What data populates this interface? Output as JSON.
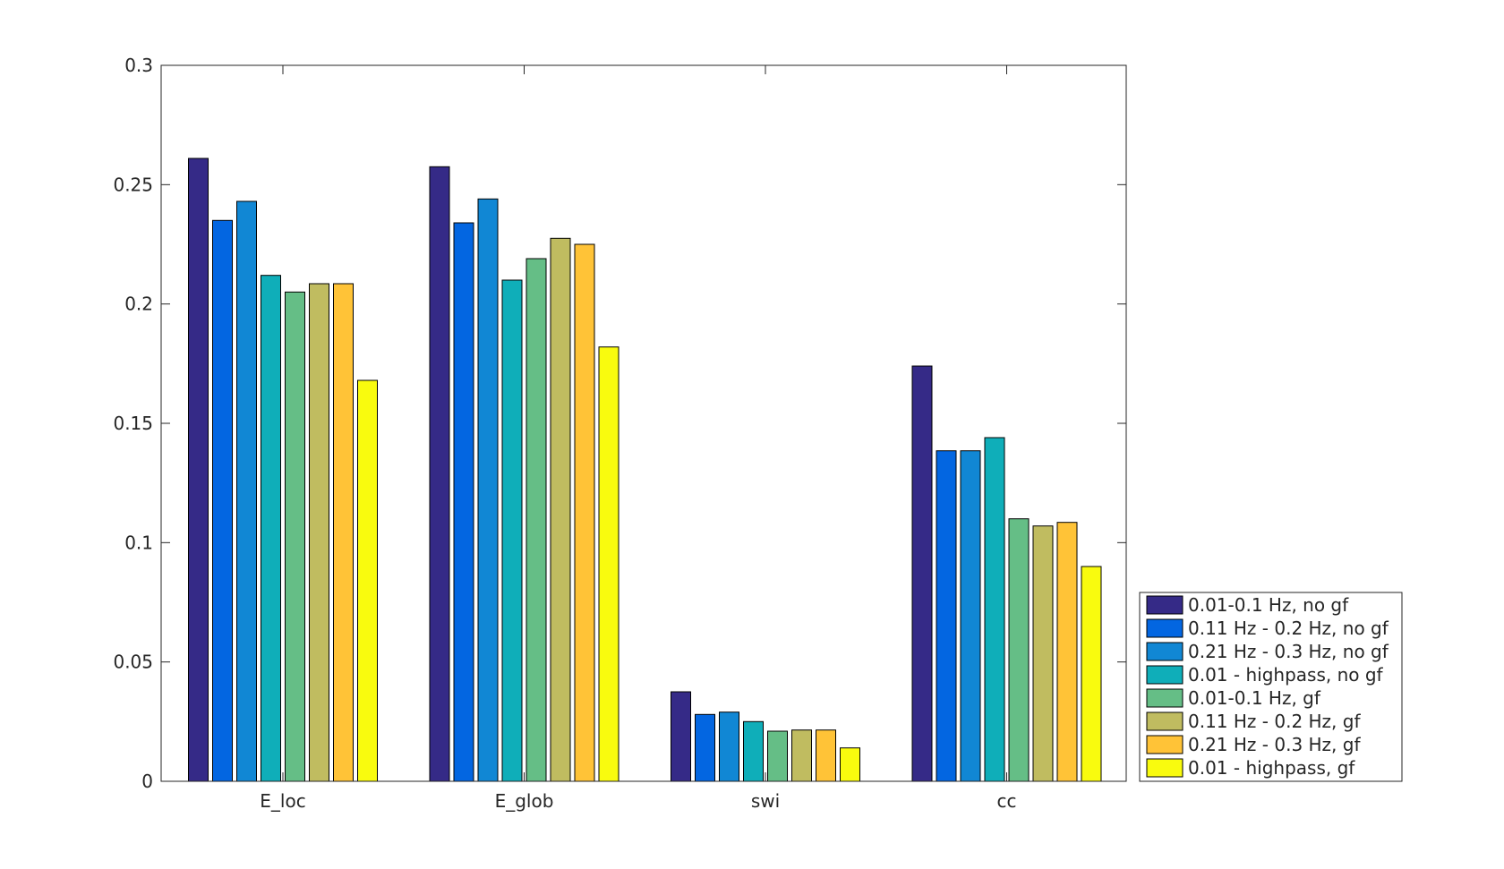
{
  "chart_data": {
    "type": "bar",
    "title": "",
    "xlabel": "",
    "ylabel": "",
    "ylim": [
      0,
      0.3
    ],
    "yticks": [
      0,
      0.05,
      0.1,
      0.15,
      0.2,
      0.25,
      0.3
    ],
    "ytick_labels": [
      "0",
      "0.05",
      "0.1",
      "0.15",
      "0.2",
      "0.25",
      "0.3"
    ],
    "categories": [
      "E_loc",
      "E_glob",
      "swi",
      "cc"
    ],
    "legend_position": "right, outside, bottom",
    "series": [
      {
        "name": "0.01-0.1 Hz, no gf",
        "color": "#352A87",
        "values": [
          0.261,
          0.2575,
          0.0375,
          0.174
        ]
      },
      {
        "name": "0.11 Hz - 0.2 Hz, no gf",
        "color": "#0366E1",
        "values": [
          0.235,
          0.234,
          0.028,
          0.1385
        ]
      },
      {
        "name": "0.21 Hz - 0.3 Hz, no gf",
        "color": "#1187D4",
        "values": [
          0.243,
          0.244,
          0.029,
          0.1385
        ]
      },
      {
        "name": "0.01 - highpass, no gf",
        "color": "#0FAEB9",
        "values": [
          0.212,
          0.21,
          0.025,
          0.144
        ]
      },
      {
        "name": "0.01-0.1 Hz, gf",
        "color": "#65BE86",
        "values": [
          0.205,
          0.219,
          0.021,
          0.11
        ]
      },
      {
        "name": "0.11 Hz - 0.2 Hz, gf",
        "color": "#C0BC60",
        "values": [
          0.2085,
          0.2275,
          0.0215,
          0.107
        ]
      },
      {
        "name": "0.21 Hz - 0.3 Hz, gf",
        "color": "#FFC337",
        "values": [
          0.2085,
          0.225,
          0.0215,
          0.1085
        ]
      },
      {
        "name": "0.01 - highpass, gf",
        "color": "#F9FB0E",
        "values": [
          0.168,
          0.182,
          0.014,
          0.09
        ]
      }
    ]
  }
}
